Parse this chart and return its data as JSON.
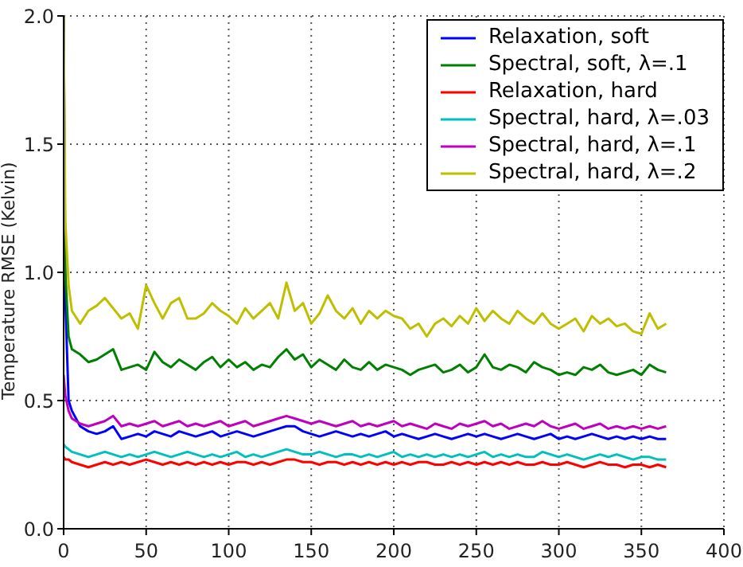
{
  "chart_data": {
    "type": "line",
    "ylabel": "Temperature RMSE (Kelvin)",
    "x": [
      0,
      1,
      3,
      5,
      10,
      15,
      20,
      25,
      30,
      35,
      40,
      45,
      50,
      55,
      60,
      65,
      70,
      75,
      80,
      85,
      90,
      95,
      100,
      105,
      110,
      115,
      120,
      125,
      130,
      135,
      140,
      145,
      150,
      155,
      160,
      165,
      170,
      175,
      180,
      185,
      190,
      195,
      200,
      205,
      210,
      215,
      220,
      225,
      230,
      235,
      240,
      245,
      250,
      255,
      260,
      265,
      270,
      275,
      280,
      285,
      290,
      295,
      300,
      305,
      310,
      315,
      320,
      325,
      330,
      335,
      340,
      345,
      350,
      355,
      360,
      365
    ],
    "series": [
      {
        "name": "Relaxation, soft",
        "color": "#0000ff",
        "values": [
          2.0,
          0.9,
          0.5,
          0.46,
          0.4,
          0.38,
          0.37,
          0.38,
          0.4,
          0.35,
          0.36,
          0.37,
          0.36,
          0.38,
          0.37,
          0.36,
          0.38,
          0.37,
          0.36,
          0.37,
          0.38,
          0.36,
          0.37,
          0.38,
          0.37,
          0.36,
          0.37,
          0.38,
          0.39,
          0.4,
          0.4,
          0.38,
          0.37,
          0.36,
          0.37,
          0.38,
          0.37,
          0.36,
          0.37,
          0.36,
          0.37,
          0.38,
          0.36,
          0.37,
          0.36,
          0.35,
          0.36,
          0.37,
          0.36,
          0.35,
          0.36,
          0.37,
          0.36,
          0.37,
          0.36,
          0.35,
          0.36,
          0.37,
          0.36,
          0.35,
          0.36,
          0.37,
          0.35,
          0.36,
          0.35,
          0.36,
          0.37,
          0.36,
          0.35,
          0.36,
          0.35,
          0.36,
          0.35,
          0.36,
          0.35,
          0.35
        ]
      },
      {
        "name": "Spectral, soft, λ=.1",
        "color": "#008000",
        "values": [
          2.0,
          1.0,
          0.75,
          0.7,
          0.68,
          0.65,
          0.66,
          0.68,
          0.7,
          0.62,
          0.63,
          0.64,
          0.62,
          0.69,
          0.65,
          0.63,
          0.66,
          0.64,
          0.62,
          0.65,
          0.67,
          0.63,
          0.66,
          0.63,
          0.65,
          0.62,
          0.64,
          0.63,
          0.67,
          0.7,
          0.66,
          0.68,
          0.63,
          0.66,
          0.64,
          0.62,
          0.66,
          0.63,
          0.62,
          0.65,
          0.62,
          0.64,
          0.63,
          0.62,
          0.6,
          0.62,
          0.63,
          0.64,
          0.61,
          0.62,
          0.64,
          0.61,
          0.63,
          0.68,
          0.63,
          0.62,
          0.64,
          0.63,
          0.61,
          0.65,
          0.63,
          0.62,
          0.6,
          0.61,
          0.6,
          0.63,
          0.62,
          0.64,
          0.61,
          0.6,
          0.61,
          0.62,
          0.6,
          0.64,
          0.62,
          0.61
        ]
      },
      {
        "name": "Relaxation, hard",
        "color": "#ff0000",
        "values": [
          0.28,
          0.27,
          0.27,
          0.26,
          0.25,
          0.24,
          0.25,
          0.26,
          0.25,
          0.26,
          0.25,
          0.26,
          0.27,
          0.26,
          0.25,
          0.26,
          0.25,
          0.26,
          0.25,
          0.26,
          0.25,
          0.26,
          0.25,
          0.26,
          0.26,
          0.25,
          0.26,
          0.25,
          0.26,
          0.27,
          0.27,
          0.26,
          0.26,
          0.25,
          0.26,
          0.26,
          0.25,
          0.26,
          0.25,
          0.26,
          0.25,
          0.26,
          0.25,
          0.26,
          0.25,
          0.26,
          0.26,
          0.25,
          0.25,
          0.26,
          0.25,
          0.26,
          0.25,
          0.26,
          0.25,
          0.26,
          0.25,
          0.26,
          0.25,
          0.25,
          0.26,
          0.25,
          0.25,
          0.26,
          0.25,
          0.24,
          0.25,
          0.26,
          0.25,
          0.25,
          0.24,
          0.25,
          0.25,
          0.24,
          0.25,
          0.24
        ]
      },
      {
        "name": "Spectral, hard, λ=.03",
        "color": "#00bfbf",
        "values": [
          0.33,
          0.32,
          0.31,
          0.3,
          0.29,
          0.28,
          0.29,
          0.3,
          0.29,
          0.28,
          0.29,
          0.28,
          0.29,
          0.3,
          0.29,
          0.28,
          0.29,
          0.3,
          0.29,
          0.28,
          0.29,
          0.28,
          0.29,
          0.3,
          0.28,
          0.29,
          0.28,
          0.29,
          0.3,
          0.31,
          0.3,
          0.29,
          0.29,
          0.3,
          0.29,
          0.28,
          0.29,
          0.29,
          0.28,
          0.29,
          0.28,
          0.29,
          0.3,
          0.28,
          0.29,
          0.28,
          0.29,
          0.28,
          0.29,
          0.28,
          0.29,
          0.28,
          0.29,
          0.3,
          0.28,
          0.29,
          0.28,
          0.29,
          0.28,
          0.28,
          0.3,
          0.29,
          0.28,
          0.29,
          0.28,
          0.27,
          0.28,
          0.29,
          0.28,
          0.29,
          0.28,
          0.27,
          0.28,
          0.28,
          0.27,
          0.27
        ]
      },
      {
        "name": "Spectral, hard, λ=.1",
        "color": "#bf00bf",
        "values": [
          0.6,
          0.52,
          0.46,
          0.43,
          0.41,
          0.4,
          0.41,
          0.42,
          0.44,
          0.4,
          0.41,
          0.4,
          0.41,
          0.42,
          0.4,
          0.41,
          0.42,
          0.4,
          0.41,
          0.4,
          0.41,
          0.42,
          0.4,
          0.41,
          0.42,
          0.4,
          0.41,
          0.42,
          0.43,
          0.44,
          0.43,
          0.42,
          0.41,
          0.42,
          0.41,
          0.4,
          0.41,
          0.42,
          0.4,
          0.41,
          0.4,
          0.41,
          0.42,
          0.4,
          0.41,
          0.4,
          0.39,
          0.41,
          0.4,
          0.39,
          0.41,
          0.4,
          0.41,
          0.42,
          0.4,
          0.41,
          0.39,
          0.4,
          0.41,
          0.4,
          0.42,
          0.4,
          0.39,
          0.4,
          0.41,
          0.39,
          0.4,
          0.41,
          0.39,
          0.4,
          0.39,
          0.4,
          0.39,
          0.4,
          0.39,
          0.4
        ]
      },
      {
        "name": "Spectral, hard, λ=.2",
        "color": "#bfbf00",
        "values": [
          2.0,
          1.2,
          0.95,
          0.85,
          0.8,
          0.85,
          0.87,
          0.9,
          0.86,
          0.82,
          0.84,
          0.78,
          0.95,
          0.88,
          0.82,
          0.88,
          0.9,
          0.82,
          0.82,
          0.84,
          0.88,
          0.85,
          0.83,
          0.8,
          0.86,
          0.82,
          0.85,
          0.88,
          0.82,
          0.96,
          0.85,
          0.88,
          0.8,
          0.84,
          0.91,
          0.85,
          0.82,
          0.86,
          0.8,
          0.85,
          0.82,
          0.85,
          0.83,
          0.82,
          0.78,
          0.8,
          0.75,
          0.8,
          0.82,
          0.79,
          0.83,
          0.8,
          0.86,
          0.81,
          0.85,
          0.82,
          0.8,
          0.85,
          0.82,
          0.8,
          0.84,
          0.8,
          0.78,
          0.8,
          0.82,
          0.77,
          0.83,
          0.8,
          0.82,
          0.79,
          0.8,
          0.77,
          0.76,
          0.84,
          0.78,
          0.8
        ]
      }
    ],
    "xlim": [
      0,
      400
    ],
    "xticks": [
      0,
      50,
      100,
      150,
      200,
      250,
      300,
      350,
      400
    ],
    "ylim": [
      0,
      2
    ],
    "yticks": [
      {
        "value": 0,
        "label": "0.0"
      },
      {
        "value": 0.5,
        "label": "0.5"
      },
      {
        "value": 1,
        "label": "1.0"
      },
      {
        "value": 1.5,
        "label": "1.5"
      },
      {
        "value": 2,
        "label": "2.0"
      }
    ],
    "grid": true,
    "legend": "top right",
    "marker": "none",
    "line_style": "solid"
  }
}
